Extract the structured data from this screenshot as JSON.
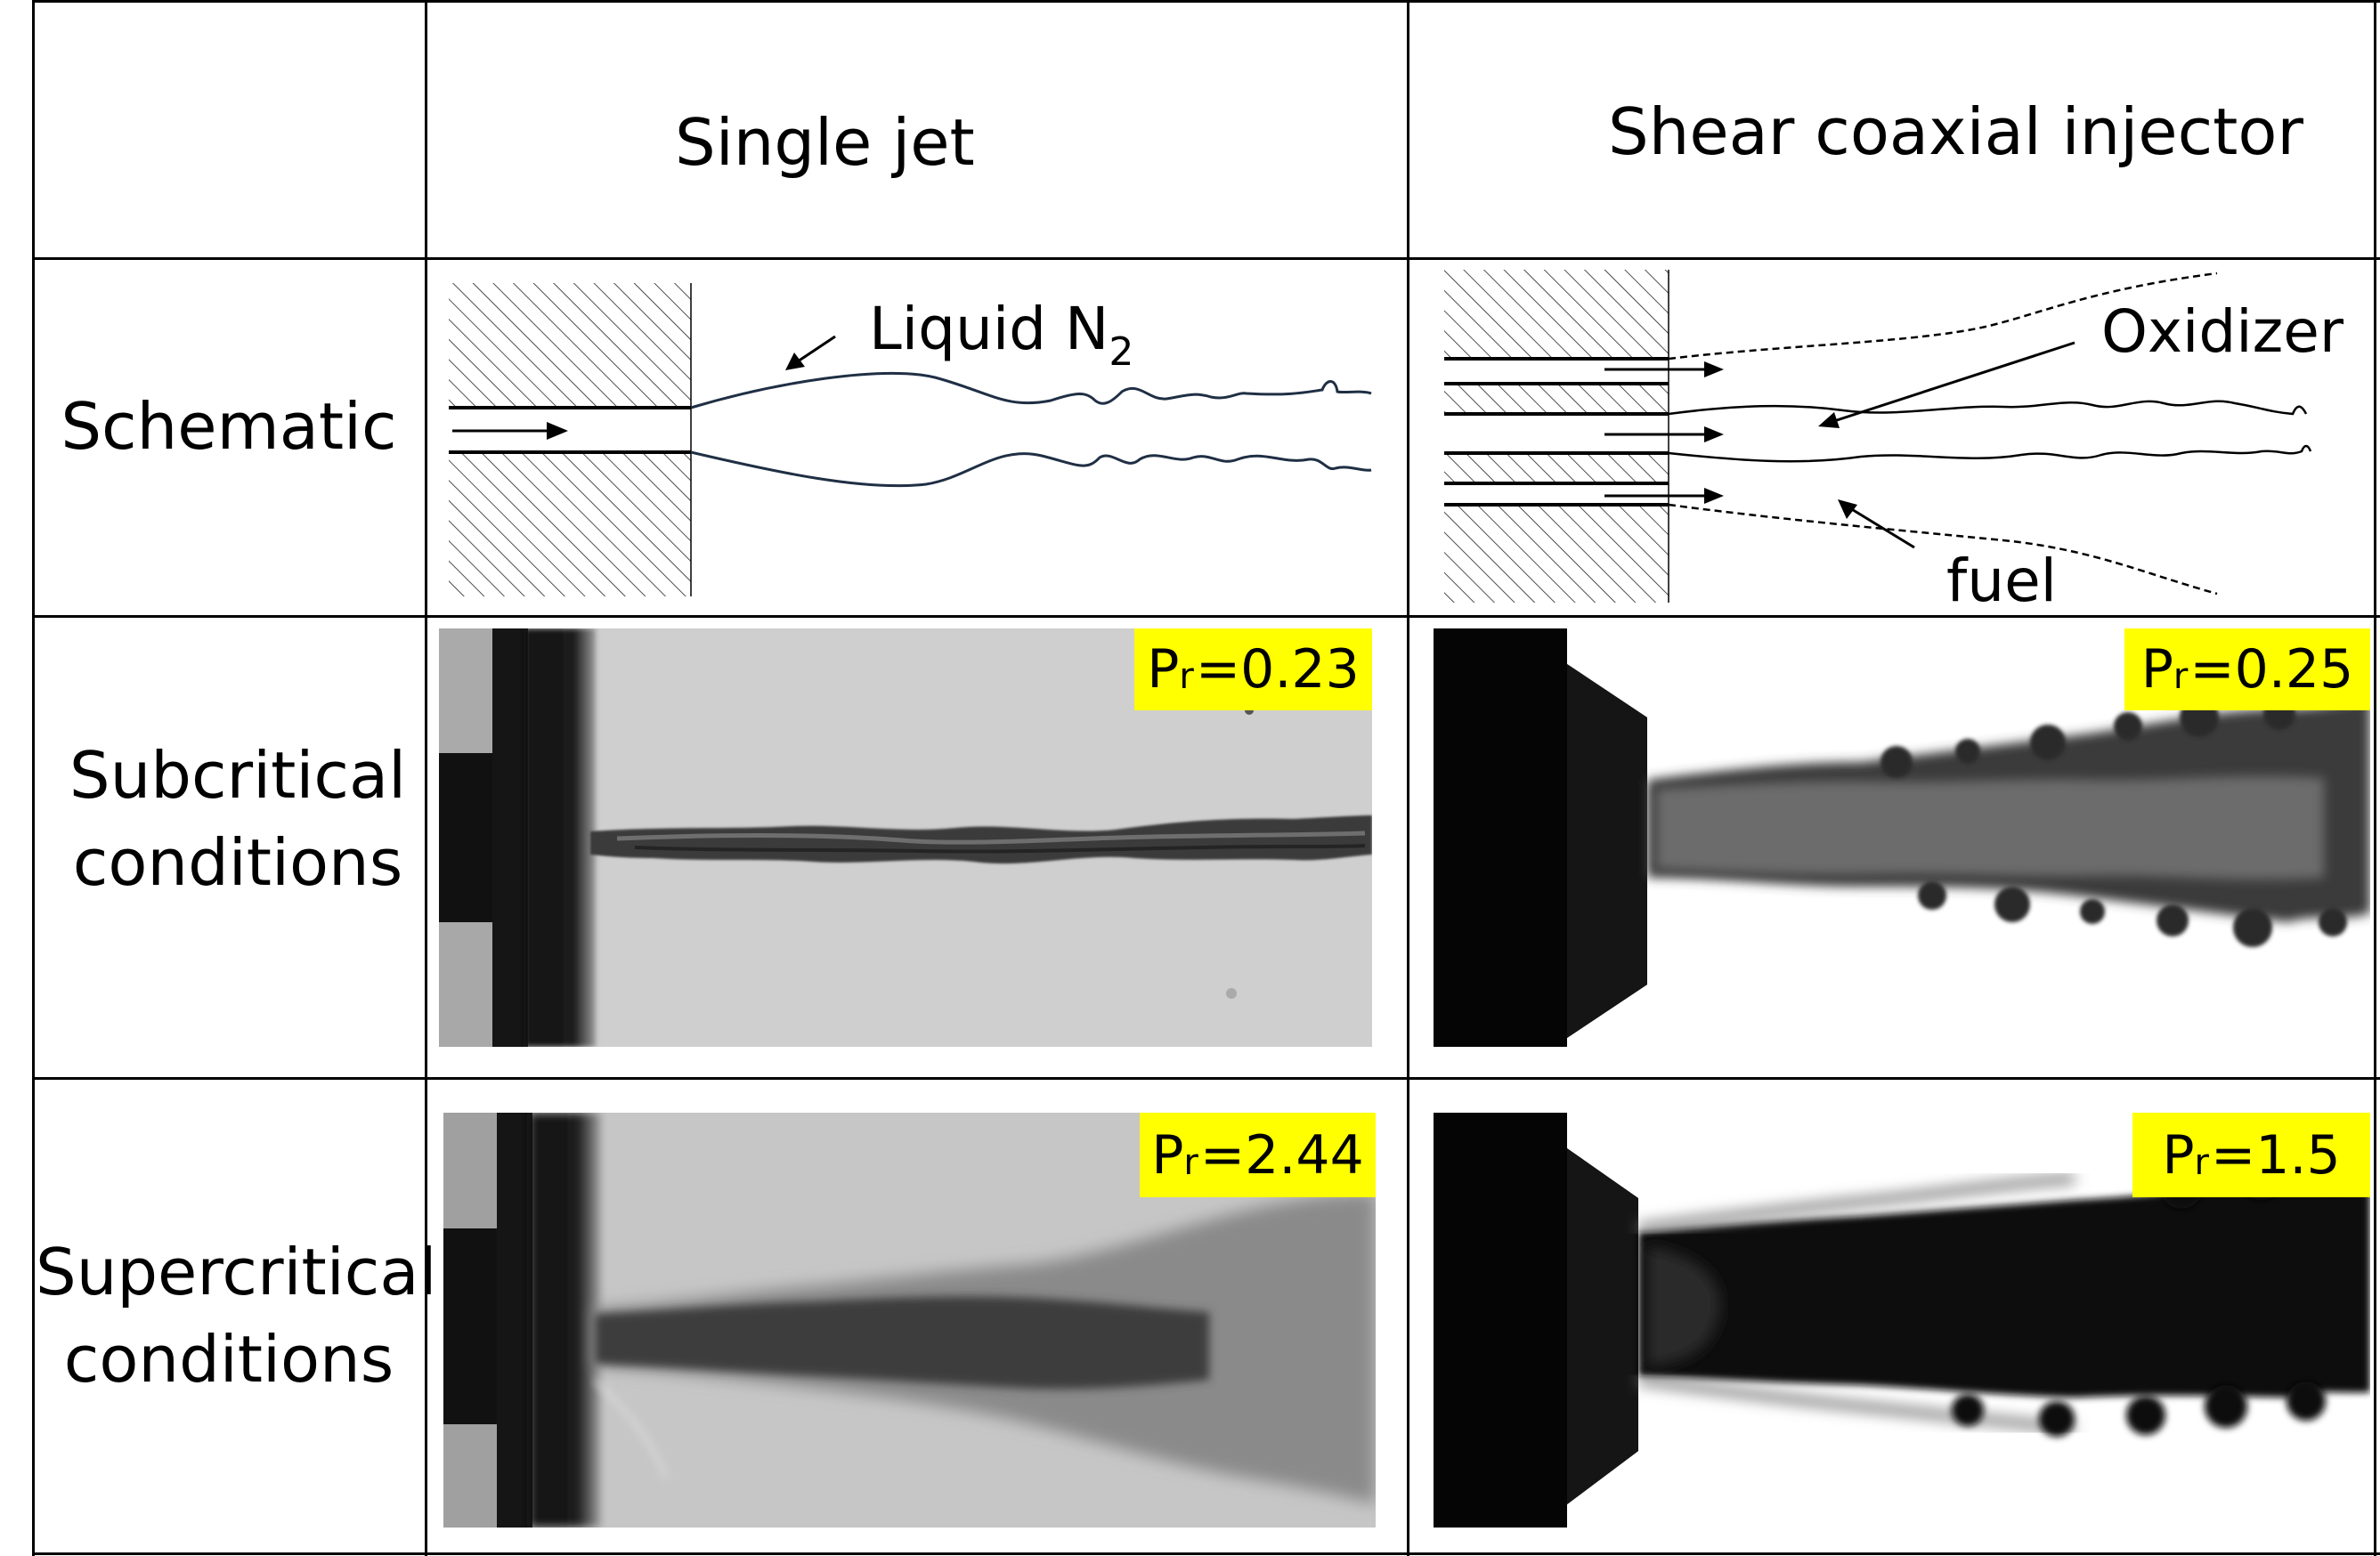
{
  "columns": {
    "single_jet": "Single jet",
    "coaxial": "Shear coaxial injector"
  },
  "rows": {
    "schematic": "Schematic",
    "subcritical": [
      "Subcritical",
      "conditions"
    ],
    "supercritical": [
      "Supercritical",
      "conditions"
    ]
  },
  "schematic_labels": {
    "liquid": "Liquid N",
    "liquid_sub": "2",
    "oxidizer": "Oxidizer",
    "fuel": "fuel"
  },
  "pressure_tags": {
    "sub_single": {
      "prefix": "P",
      "sub": "r",
      "value": "=0.23"
    },
    "sub_coax": {
      "prefix": "P",
      "sub": "r",
      "value": "=0.25"
    },
    "sup_single": {
      "prefix": "P",
      "sub": "r",
      "value": "=2.44"
    },
    "sup_coax": {
      "prefix": "P",
      "sub": "r",
      "value": "=1.5"
    }
  },
  "colors": {
    "tag_bg": "#ffff00",
    "jet_outline": "#1f2f44"
  }
}
